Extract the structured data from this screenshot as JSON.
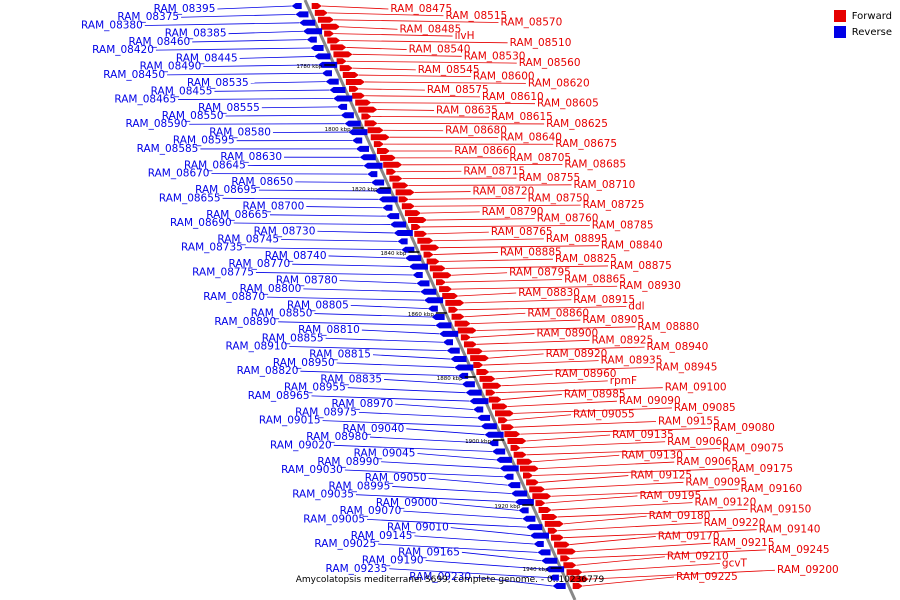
{
  "legend": {
    "forward_label": "Forward",
    "reverse_label": "Reverse"
  },
  "colors": {
    "forward": "#e60000",
    "reverse": "#0000e6",
    "axis": "#888888",
    "tick": "#000000"
  },
  "caption": "Amycolatopsis mediterranei S699, complete genome. - 0..10236779",
  "kbp_ticks": [
    "1780 kbp",
    "1800 kbp",
    "1820 kbp",
    "1840 kbp",
    "1860 kbp",
    "1880 kbp",
    "1900 kbp",
    "1920 kbp",
    "1940 kbp"
  ],
  "forward_labels": [
    "RAM_08475",
    "RAM_08515",
    "RAM_08570",
    "RAM_08485",
    "ilvH",
    "RAM_08510",
    "RAM_08540",
    "RAM_08530",
    "RAM_08560",
    "RAM_08545",
    "RAM_08600",
    "RAM_08620",
    "RAM_08575",
    "RAM_08610",
    "RAM_08605",
    "RAM_08635",
    "RAM_08615",
    "RAM_08625",
    "RAM_08680",
    "RAM_08640",
    "RAM_08675",
    "RAM_08660",
    "RAM_08705",
    "RAM_08685",
    "RAM_08715",
    "RAM_08755",
    "RAM_08710",
    "RAM_08720",
    "RAM_08750",
    "RAM_08725",
    "RAM_08790",
    "RAM_08760",
    "RAM_08785",
    "RAM_08765",
    "RAM_08895",
    "RAM_08840",
    "RAM_08885",
    "RAM_08825",
    "RAM_08875",
    "RAM_08795",
    "RAM_08865",
    "RAM_08930",
    "RAM_08830",
    "RAM_08915",
    "ddl",
    "RAM_08860",
    "RAM_08905",
    "RAM_08880",
    "RAM_08900",
    "RAM_08925",
    "RAM_08940",
    "RAM_08920",
    "RAM_08935",
    "RAM_08945",
    "RAM_08960",
    "rpmF",
    "RAM_09100",
    "RAM_08985",
    "RAM_09090",
    "RAM_09085",
    "RAM_09055",
    "RAM_09155",
    "RAM_09080",
    "RAM_09135",
    "RAM_09060",
    "RAM_09075",
    "RAM_09130",
    "RAM_09065",
    "RAM_09175",
    "RAM_09125",
    "RAM_09095",
    "RAM_09160",
    "RAM_09195",
    "RAM_09120",
    "RAM_09150",
    "RAM_09180",
    "RAM_09220",
    "RAM_09140",
    "RAM_09170",
    "RAM_09215",
    "RAM_09245",
    "RAM_09210",
    "gcvT",
    "RAM_09200",
    "RAM_09225"
  ],
  "reverse_labels": [
    "RAM_08395",
    "RAM_08375",
    "RAM_08380",
    "RAM_08385",
    "RAM_08460",
    "RAM_08420",
    "RAM_08445",
    "RAM_08490",
    "RAM_08450",
    "RAM_08535",
    "RAM_08455",
    "RAM_08465",
    "RAM_08555",
    "RAM_08550",
    "RAM_08590",
    "RAM_08580",
    "RAM_08595",
    "RAM_08585",
    "RAM_08630",
    "RAM_08645",
    "RAM_08670",
    "RAM_08650",
    "RAM_08695",
    "RAM_08655",
    "RAM_08700",
    "RAM_08665",
    "RAM_08690",
    "RAM_08730",
    "RAM_08745",
    "RAM_08735",
    "RAM_08740",
    "RAM_08770",
    "RAM_08775",
    "RAM_08780",
    "RAM_08800",
    "RAM_08870",
    "RAM_08805",
    "RAM_08850",
    "RAM_08890",
    "RAM_08810",
    "RAM_08855",
    "RAM_08910",
    "RAM_08815",
    "RAM_08950",
    "RAM_08820",
    "RAM_08835",
    "RAM_08955",
    "RAM_08965",
    "RAM_08970",
    "RAM_08975",
    "RAM_09015",
    "RAM_09040",
    "RAM_08980",
    "RAM_09020",
    "RAM_09045",
    "RAM_08990",
    "RAM_09030",
    "RAM_09050",
    "RAM_08995",
    "RAM_09035",
    "RAM_09000",
    "RAM_09070",
    "RAM_09005",
    "RAM_09010",
    "RAM_09145",
    "RAM_09025",
    "RAM_09165",
    "RAM_09190",
    "RAM_09235",
    "RAM_09230"
  ]
}
